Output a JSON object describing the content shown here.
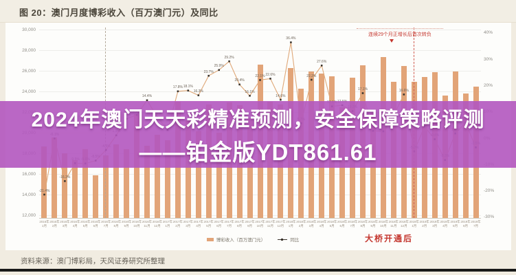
{
  "page": {
    "title": "图 20：澳门月度博彩收入（百万澳门元）及同比",
    "source": "资料来源：澳门博彩局，天风证券研究所整理"
  },
  "overlay": {
    "line1": "2024年澳门天天彩精准预测，安全保障策略评测",
    "line2": "——铂金版YDT861.61",
    "band_color": "#b256bf",
    "text_color": "#ffffff"
  },
  "annotations": {
    "negative_turn": "连续29个月正增长后首次转负",
    "bridge": "大桥开通后"
  },
  "legend": [
    {
      "label": "博彩收入（百万澳门元）",
      "color": "#e2a478",
      "type": "bar"
    },
    {
      "label": "同比",
      "color": "#3c362e",
      "type": "line"
    }
  ],
  "colors": {
    "bar": "#e2a478",
    "line": "#dfa878",
    "marker": "#3c362e",
    "accent_red": "#c4362e",
    "band_purple": "#b256bf",
    "page_bg": "#f1ece1"
  },
  "chart_data": {
    "type": "bar",
    "title": "澳门月度博彩收入（百万澳门元）及同比",
    "categories": [
      "2016年1月",
      "2016年2月",
      "2016年3月",
      "2016年4月",
      "2016年5月",
      "2016年6月",
      "2016年7月",
      "2016年8月",
      "2016年9月",
      "2016年10月",
      "2016年11月",
      "2016年12月",
      "2017年1月",
      "2017年2月",
      "2017年3月",
      "2017年4月",
      "2017年5月",
      "2017年6月",
      "2017年7月",
      "2017年8月",
      "2017年9月",
      "2017年10月",
      "2017年11月",
      "2017年12月",
      "2018年1月",
      "2018年2月",
      "2018年3月",
      "2018年4月",
      "2018年5月",
      "2018年6月",
      "2018年7月",
      "2018年8月",
      "2018年9月",
      "2018年10月",
      "2018年11月",
      "2018年12月",
      "2019年1月",
      "2019年2月",
      "2019年3月",
      "2019年4月",
      "2019年5月",
      "2019年6月",
      "2019年7月"
    ],
    "series": [
      {
        "name": "博彩收入（百万澳门元）",
        "type": "bar",
        "axis": "left",
        "values": [
          18674,
          19519,
          17980,
          17340,
          18389,
          15884,
          17773,
          18837,
          18435,
          21807,
          18769,
          19816,
          19253,
          22992,
          21224,
          20164,
          22743,
          19992,
          22965,
          22676,
          21408,
          26630,
          23007,
          22709,
          26265,
          24303,
          25936,
          25729,
          25495,
          22491,
          25330,
          26553,
          22007,
          27322,
          24963,
          26468,
          24952,
          25372,
          25840,
          23594,
          25953,
          23818,
          24453
        ]
      },
      {
        "name": "同比",
        "type": "line",
        "axis": "right",
        "values": [
          -21.4,
          -0.1,
          -16.3,
          -9.5,
          -9.6,
          -8.5,
          -4.5,
          1.1,
          7.4,
          8.8,
          14.4,
          8.0,
          3.1,
          17.8,
          18.1,
          16.3,
          23.7,
          25.9,
          29.2,
          20.4,
          16.1,
          22.1,
          22.6,
          14.6,
          36.4,
          5.7,
          22.2,
          27.6,
          12.1,
          12.5,
          10.3,
          17.1,
          2.8,
          2.6,
          8.5,
          16.6,
          -5.0,
          4.4,
          -0.4,
          -8.3,
          1.8,
          5.9,
          -3.5
        ]
      }
    ],
    "left_axis": {
      "min": 12000,
      "max": 30000,
      "step": 2000,
      "label_format": "thousands-comma"
    },
    "right_axis": {
      "min": -30,
      "max": 40,
      "step": 10,
      "label_format": "percent"
    },
    "grid": true,
    "legend_position": "bottom",
    "event_markers": [
      {
        "x_category": "2016年7月",
        "style": "gray-dashed"
      },
      {
        "x_category": "2019年1月",
        "style": "red-dashed",
        "label": "连续29个月正增长后首次转负"
      }
    ]
  }
}
